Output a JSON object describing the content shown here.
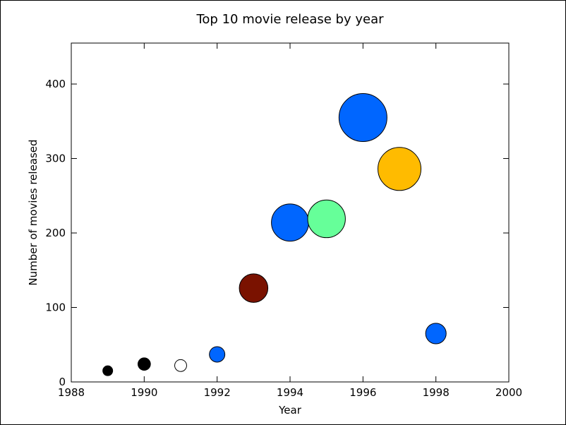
{
  "chart_data": {
    "type": "scatter",
    "title": "Top 10 movie release by year",
    "xlabel": "Year",
    "ylabel": "Number of movies released",
    "xlim": [
      1988,
      2000
    ],
    "ylim": [
      0,
      455
    ],
    "xticks": [
      1988,
      1990,
      1992,
      1994,
      1996,
      1998,
      2000
    ],
    "yticks": [
      0,
      100,
      200,
      300,
      400
    ],
    "grid": false,
    "legend": "none",
    "points": [
      {
        "x": 1989,
        "y": 15,
        "size": 15,
        "color": "#000000"
      },
      {
        "x": 1990,
        "y": 24,
        "size": 24,
        "color": "#000000"
      },
      {
        "x": 1991,
        "y": 22,
        "size": 22,
        "color": "#ffffff"
      },
      {
        "x": 1992,
        "y": 37,
        "size": 37,
        "color": "#0066ff"
      },
      {
        "x": 1993,
        "y": 126,
        "size": 126,
        "color": "#7a1200"
      },
      {
        "x": 1994,
        "y": 214,
        "size": 214,
        "color": "#0066ff"
      },
      {
        "x": 1995,
        "y": 219,
        "size": 219,
        "color": "#66ff99"
      },
      {
        "x": 1996,
        "y": 355,
        "size": 355,
        "color": "#0066ff"
      },
      {
        "x": 1997,
        "y": 286,
        "size": 286,
        "color": "#ffbb00"
      },
      {
        "x": 1998,
        "y": 65,
        "size": 65,
        "color": "#0066ff"
      }
    ]
  }
}
